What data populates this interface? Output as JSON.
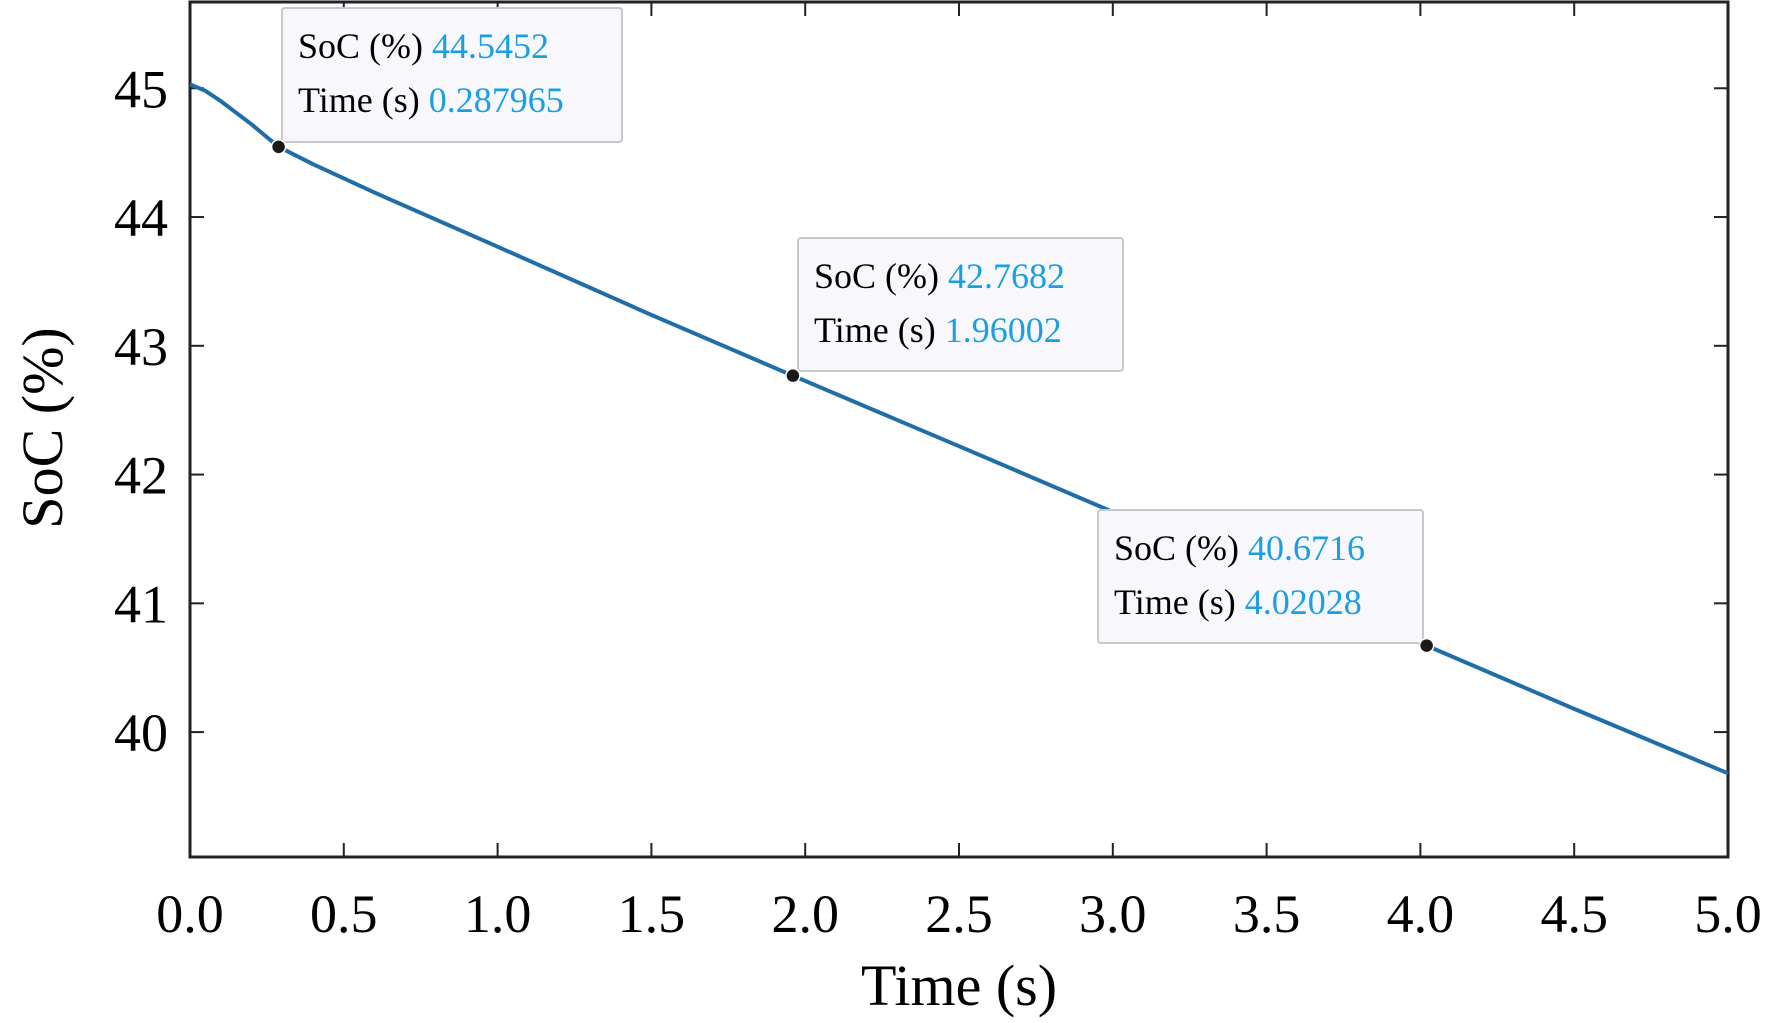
{
  "chart_data": {
    "type": "line",
    "xlabel": "Time (s)",
    "ylabel": "SoC (%)",
    "xlim": [
      0,
      5
    ],
    "ylim": [
      39.03,
      45.67
    ],
    "xticks": [
      "0.0",
      "0.5",
      "1.0",
      "1.5",
      "2.0",
      "2.5",
      "3.0",
      "3.5",
      "4.0",
      "4.5",
      "5.0"
    ],
    "yticks": [
      "40",
      "41",
      "42",
      "43",
      "44",
      "45"
    ],
    "grid": false,
    "series": [
      {
        "x": [
          0,
          0.05,
          0.1,
          0.15,
          0.2,
          0.25,
          0.287965,
          0.4,
          0.6,
          1.0,
          1.5,
          1.96002,
          2.5,
          3.0,
          3.5,
          4.02028,
          4.5,
          5.0
        ],
        "y": [
          45.03,
          44.98,
          44.9,
          44.81,
          44.72,
          44.62,
          44.5452,
          44.41,
          44.19,
          43.77,
          43.24,
          42.7682,
          42.22,
          41.71,
          41.2,
          40.6716,
          40.18,
          39.68
        ],
        "color": "#1f6ea8"
      }
    ],
    "datatips": [
      {
        "label_y": "SoC (%)",
        "y": "44.5452",
        "label_x": "Time (s)",
        "x": "0.287965"
      },
      {
        "label_y": "SoC (%)",
        "y": "42.7682",
        "label_x": "Time (s)",
        "x": "1.96002"
      },
      {
        "label_y": "SoC (%)",
        "y": "40.6716",
        "label_x": "Time (s)",
        "x": "4.02028"
      }
    ],
    "colors": {
      "line": "#1f6ea8",
      "tip_value": "#1a9fe0",
      "marker": "#1a1a1a"
    }
  }
}
